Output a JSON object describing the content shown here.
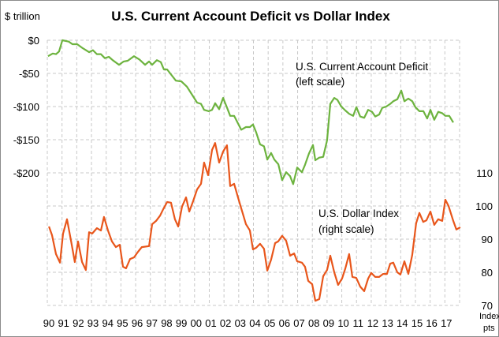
{
  "chart_data": {
    "type": "line",
    "title": "U.S. Current Account Deficit vs Dollar Index",
    "ylabel_left": "$ trillion",
    "ylabel_right": [
      "Index",
      "pts"
    ],
    "xlabel": "",
    "xlim": [
      1990,
      2018
    ],
    "ylim_left": [
      -400,
      0
    ],
    "ylim_right": [
      70,
      150
    ],
    "x_ticks": [
      {
        "year": 1990,
        "label": "90"
      },
      {
        "year": 1991,
        "label": "91"
      },
      {
        "year": 1992,
        "label": "92"
      },
      {
        "year": 1993,
        "label": "93"
      },
      {
        "year": 1994,
        "label": "94"
      },
      {
        "year": 1995,
        "label": "95"
      },
      {
        "year": 1996,
        "label": "96"
      },
      {
        "year": 1997,
        "label": "97"
      },
      {
        "year": 1998,
        "label": "98"
      },
      {
        "year": 1999,
        "label": "99"
      },
      {
        "year": 2000,
        "label": "00"
      },
      {
        "year": 2001,
        "label": "01"
      },
      {
        "year": 2002,
        "label": "02"
      },
      {
        "year": 2003,
        "label": "03"
      },
      {
        "year": 2004,
        "label": "04"
      },
      {
        "year": 2005,
        "label": "05"
      },
      {
        "year": 2006,
        "label": "06"
      },
      {
        "year": 2007,
        "label": "07"
      },
      {
        "year": 2008,
        "label": "08"
      },
      {
        "year": 2009,
        "label": "09"
      },
      {
        "year": 2010,
        "label": "10"
      },
      {
        "year": 2011,
        "label": "11"
      },
      {
        "year": 2012,
        "label": "12"
      },
      {
        "year": 2013,
        "label": "13"
      },
      {
        "year": 2014,
        "label": "14"
      },
      {
        "year": 2015,
        "label": "15"
      },
      {
        "year": 2016,
        "label": "16"
      },
      {
        "year": 2017,
        "label": "17"
      }
    ],
    "y_ticks_left": [
      {
        "value": 0,
        "label": "$0"
      },
      {
        "value": -50,
        "label": "-$50"
      },
      {
        "value": -100,
        "label": "-$100"
      },
      {
        "value": -150,
        "label": "-$150"
      },
      {
        "value": -200,
        "label": "-$200"
      }
    ],
    "y_ticks_right": [
      {
        "value": 110,
        "label": "110"
      },
      {
        "value": 100,
        "label": "100"
      },
      {
        "value": 90,
        "label": "90"
      },
      {
        "value": 80,
        "label": "80"
      },
      {
        "value": 70,
        "label": "70"
      }
    ],
    "grid": true,
    "grid_lines_y_left": [
      0,
      -50,
      -100,
      -150,
      -200,
      -250,
      -300,
      -350,
      -400
    ],
    "series": [
      {
        "name": "U.S. Current Account Deficit",
        "annotation": [
          "U.S. Current  Account Deficit",
          "(left scale)"
        ],
        "axis": "left",
        "color": "#6db33f",
        "points": [
          [
            1990.05,
            -24
          ],
          [
            1990.37,
            -20
          ],
          [
            1990.59,
            -21
          ],
          [
            1990.8,
            -17
          ],
          [
            1991.02,
            0
          ],
          [
            1991.45,
            -2
          ],
          [
            1991.71,
            -6
          ],
          [
            1992.03,
            -6
          ],
          [
            1992.41,
            -12
          ],
          [
            1992.84,
            -18
          ],
          [
            1993.1,
            -15
          ],
          [
            1993.37,
            -21
          ],
          [
            1993.64,
            -21
          ],
          [
            1993.91,
            -27
          ],
          [
            1994.18,
            -25
          ],
          [
            1994.44,
            -30
          ],
          [
            1994.87,
            -37
          ],
          [
            1995.19,
            -32
          ],
          [
            1995.46,
            -31
          ],
          [
            1995.89,
            -24
          ],
          [
            1996.26,
            -29
          ],
          [
            1996.64,
            -37
          ],
          [
            1996.91,
            -32
          ],
          [
            1997.12,
            -37
          ],
          [
            1997.44,
            -30
          ],
          [
            1997.71,
            -33
          ],
          [
            1997.92,
            -44
          ],
          [
            1998.14,
            -44
          ],
          [
            1998.73,
            -61
          ],
          [
            1999.1,
            -62
          ],
          [
            1999.48,
            -70
          ],
          [
            1999.8,
            -81
          ],
          [
            2000.17,
            -94
          ],
          [
            2000.44,
            -96
          ],
          [
            2000.65,
            -105
          ],
          [
            2000.97,
            -107
          ],
          [
            2001.19,
            -105
          ],
          [
            2001.4,
            -95
          ],
          [
            2001.67,
            -104
          ],
          [
            2001.94,
            -87
          ],
          [
            2002.21,
            -102
          ],
          [
            2002.42,
            -114
          ],
          [
            2002.69,
            -114
          ],
          [
            2003.17,
            -135
          ],
          [
            2003.49,
            -131
          ],
          [
            2003.76,
            -131
          ],
          [
            2003.97,
            -127
          ],
          [
            2004.19,
            -139
          ],
          [
            2004.45,
            -157
          ],
          [
            2004.72,
            -160
          ],
          [
            2004.94,
            -180
          ],
          [
            2005.2,
            -170
          ],
          [
            2005.42,
            -180
          ],
          [
            2005.69,
            -187
          ],
          [
            2005.95,
            -211
          ],
          [
            2006.22,
            -199
          ],
          [
            2006.49,
            -205
          ],
          [
            2006.7,
            -217
          ],
          [
            2006.97,
            -192
          ],
          [
            2007.29,
            -199
          ],
          [
            2007.5,
            -188
          ],
          [
            2007.77,
            -171
          ],
          [
            2008.04,
            -158
          ],
          [
            2008.2,
            -181
          ],
          [
            2008.47,
            -177
          ],
          [
            2008.74,
            -176
          ],
          [
            2009.0,
            -151
          ],
          [
            2009.22,
            -96
          ],
          [
            2009.49,
            -87
          ],
          [
            2009.7,
            -90
          ],
          [
            2009.97,
            -100
          ],
          [
            2010.24,
            -106
          ],
          [
            2010.5,
            -111
          ],
          [
            2010.77,
            -114
          ],
          [
            2010.99,
            -101
          ],
          [
            2011.25,
            -115
          ],
          [
            2011.52,
            -117
          ],
          [
            2011.79,
            -105
          ],
          [
            2012.06,
            -108
          ],
          [
            2012.27,
            -115
          ],
          [
            2012.54,
            -112
          ],
          [
            2012.75,
            -102
          ],
          [
            2013.02,
            -100
          ],
          [
            2013.29,
            -96
          ],
          [
            2013.5,
            -92
          ],
          [
            2013.77,
            -89
          ],
          [
            2014.04,
            -76
          ],
          [
            2014.25,
            -92
          ],
          [
            2014.52,
            -88
          ],
          [
            2014.79,
            -92
          ],
          [
            2015.0,
            -101
          ],
          [
            2015.27,
            -107
          ],
          [
            2015.54,
            -107
          ],
          [
            2015.8,
            -118
          ],
          [
            2016.02,
            -105
          ],
          [
            2016.28,
            -120
          ],
          [
            2016.55,
            -108
          ],
          [
            2016.82,
            -110
          ],
          [
            2017.03,
            -114
          ],
          [
            2017.3,
            -114
          ],
          [
            2017.57,
            -124
          ]
        ]
      },
      {
        "name": "U.S. Dollar Index",
        "annotation": [
          "U.S. Dollar Index",
          "(right scale)"
        ],
        "axis": "right",
        "color": "#e8561b",
        "points": [
          [
            1990.11,
            93.8
          ],
          [
            1990.32,
            91.2
          ],
          [
            1990.59,
            85.5
          ],
          [
            1990.86,
            82.9
          ],
          [
            1991.07,
            91.7
          ],
          [
            1991.34,
            96.0
          ],
          [
            1991.61,
            89.5
          ],
          [
            1991.87,
            83.1
          ],
          [
            1992.09,
            89.3
          ],
          [
            1992.36,
            83.1
          ],
          [
            1992.62,
            80.7
          ],
          [
            1992.84,
            92.1
          ],
          [
            1993.05,
            91.7
          ],
          [
            1993.37,
            93.3
          ],
          [
            1993.64,
            92.6
          ],
          [
            1993.85,
            96.7
          ],
          [
            1994.12,
            92.6
          ],
          [
            1994.39,
            89.3
          ],
          [
            1994.66,
            87.6
          ],
          [
            1994.92,
            88.3
          ],
          [
            1995.14,
            81.7
          ],
          [
            1995.35,
            81.2
          ],
          [
            1995.62,
            84.0
          ],
          [
            1995.89,
            84.5
          ],
          [
            1996.16,
            86.2
          ],
          [
            1996.42,
            87.6
          ],
          [
            1996.91,
            87.9
          ],
          [
            1997.12,
            94.5
          ],
          [
            1997.39,
            95.5
          ],
          [
            1997.66,
            97.1
          ],
          [
            1997.87,
            99.0
          ],
          [
            1998.14,
            101.2
          ],
          [
            1998.4,
            101.0
          ],
          [
            1998.67,
            96.0
          ],
          [
            1998.89,
            93.8
          ],
          [
            1999.15,
            99.8
          ],
          [
            1999.42,
            102.6
          ],
          [
            1999.64,
            98.3
          ],
          [
            1999.9,
            101.4
          ],
          [
            2000.17,
            105.0
          ],
          [
            2000.44,
            106.7
          ],
          [
            2000.65,
            113.1
          ],
          [
            2000.92,
            109.3
          ],
          [
            2001.19,
            116.9
          ],
          [
            2001.4,
            119.0
          ],
          [
            2001.67,
            113.1
          ],
          [
            2001.94,
            116.4
          ],
          [
            2002.2,
            118.3
          ],
          [
            2002.42,
            106.0
          ],
          [
            2002.69,
            106.7
          ],
          [
            2002.95,
            102.6
          ],
          [
            2003.22,
            98.6
          ],
          [
            2003.49,
            94.5
          ],
          [
            2003.76,
            92.6
          ],
          [
            2003.97,
            86.9
          ],
          [
            2004.19,
            87.4
          ],
          [
            2004.45,
            88.6
          ],
          [
            2004.72,
            87.1
          ],
          [
            2004.94,
            80.5
          ],
          [
            2005.2,
            83.8
          ],
          [
            2005.47,
            88.8
          ],
          [
            2005.68,
            89.3
          ],
          [
            2005.95,
            91.0
          ],
          [
            2006.22,
            89.5
          ],
          [
            2006.49,
            85.0
          ],
          [
            2006.76,
            85.7
          ],
          [
            2006.97,
            83.3
          ],
          [
            2007.29,
            82.9
          ],
          [
            2007.5,
            81.7
          ],
          [
            2007.72,
            77.4
          ],
          [
            2007.99,
            76.4
          ],
          [
            2008.2,
            71.4
          ],
          [
            2008.47,
            71.9
          ],
          [
            2008.74,
            78.8
          ],
          [
            2009.0,
            80.7
          ],
          [
            2009.22,
            85.0
          ],
          [
            2009.49,
            80.0
          ],
          [
            2009.75,
            76.2
          ],
          [
            2010.02,
            78.1
          ],
          [
            2010.24,
            81.2
          ],
          [
            2010.5,
            85.5
          ],
          [
            2010.72,
            78.6
          ],
          [
            2010.98,
            78.3
          ],
          [
            2011.25,
            75.7
          ],
          [
            2011.52,
            74.3
          ],
          [
            2011.79,
            78.1
          ],
          [
            2012.0,
            79.8
          ],
          [
            2012.27,
            78.6
          ],
          [
            2012.54,
            78.6
          ],
          [
            2012.8,
            79.5
          ],
          [
            2013.07,
            79.5
          ],
          [
            2013.29,
            82.6
          ],
          [
            2013.5,
            82.9
          ],
          [
            2013.77,
            80.0
          ],
          [
            2013.98,
            79.3
          ],
          [
            2014.25,
            83.3
          ],
          [
            2014.52,
            79.5
          ],
          [
            2014.78,
            85.2
          ],
          [
            2015.05,
            94.8
          ],
          [
            2015.27,
            97.9
          ],
          [
            2015.53,
            95.2
          ],
          [
            2015.75,
            95.7
          ],
          [
            2016.02,
            98.3
          ],
          [
            2016.28,
            94.3
          ],
          [
            2016.55,
            96.0
          ],
          [
            2016.82,
            95.5
          ],
          [
            2017.03,
            101.9
          ],
          [
            2017.25,
            100.0
          ],
          [
            2017.57,
            95.5
          ],
          [
            2017.78,
            92.9
          ],
          [
            2018.05,
            93.6
          ]
        ]
      }
    ]
  }
}
